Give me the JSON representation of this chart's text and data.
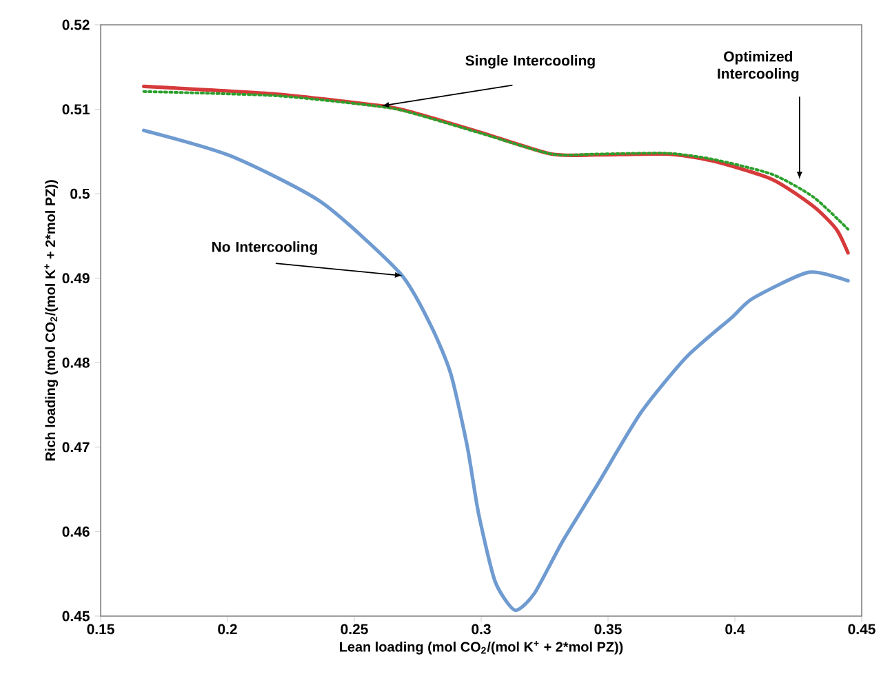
{
  "chart_data": {
    "type": "line",
    "xlabel": "Lean loading (mol CO$_{2}$/(mol K$^{+}$ + 2*mol PZ))",
    "ylabel": "Rich  loading (mol CO$_{2}$/(mol K$^{+}$ + 2*mol PZ))",
    "xlim": [
      0.15,
      0.45
    ],
    "ylim": [
      0.45,
      0.52
    ],
    "xticks": [
      0.15,
      0.2,
      0.25,
      0.3,
      0.35,
      0.4,
      0.45
    ],
    "yticks": [
      0.45,
      0.46,
      0.47,
      0.48,
      0.49,
      0.5,
      0.51,
      0.52
    ],
    "marker": "none",
    "annotations": [
      {
        "text": "Single Intercooling",
        "x": 0.2607,
        "y": 0.5104
      },
      {
        "text": "No Intercooling",
        "x": 0.269,
        "y": 0.4903
      },
      {
        "text": "Optimized Intercooling",
        "x": 0.4255,
        "y": 0.5017
      }
    ],
    "series": [
      {
        "color": "#6f9bd1",
        "line_style": "solid",
        "x": [
          0.167,
          0.201,
          0.237,
          0.268,
          0.28,
          0.288,
          0.2945,
          0.299,
          0.3055,
          0.3133,
          0.321,
          0.332,
          0.3455,
          0.363,
          0.381,
          0.399,
          0.407,
          0.429,
          0.4446
        ],
        "values": [
          0.5075,
          0.5045,
          0.499,
          0.4906,
          0.4845,
          0.4787,
          0.4701,
          0.4621,
          0.4541,
          0.4507,
          0.4527,
          0.4588,
          0.4654,
          0.4741,
          0.4807,
          0.4854,
          0.4876,
          0.4907,
          0.4897
        ]
      },
      {
        "color": "#d63a3a",
        "line_style": "solid",
        "x": [
          0.167,
          0.219,
          0.2607,
          0.2734,
          0.3005,
          0.3277,
          0.3457,
          0.373,
          0.391,
          0.4147,
          0.431,
          0.44,
          0.4446
        ],
        "values": [
          0.5127,
          0.5118,
          0.5104,
          0.5096,
          0.5072,
          0.5047,
          0.5046,
          0.5047,
          0.5039,
          0.5017,
          0.4985,
          0.4958,
          0.493
        ]
      },
      {
        "color": "#2ca02c",
        "line_style": "dotted",
        "x": [
          0.167,
          0.219,
          0.2607,
          0.2734,
          0.3005,
          0.3277,
          0.3457,
          0.373,
          0.391,
          0.4147,
          0.431,
          0.4446
        ],
        "values": [
          0.5121,
          0.5116,
          0.5103,
          0.5095,
          0.5071,
          0.5047,
          0.5047,
          0.5048,
          0.5041,
          0.5023,
          0.4996,
          0.4958
        ]
      }
    ]
  }
}
